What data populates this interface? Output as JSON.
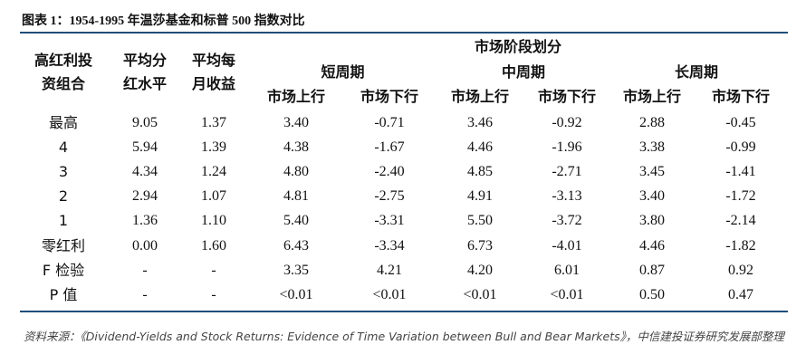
{
  "title": "图表 1：1954-1995 年温莎基金和标普 500 指数对比",
  "table": {
    "head": {
      "portfolio": [
        "高红利投",
        "资组合"
      ],
      "dividend": [
        "平均分",
        "红水平"
      ],
      "monthly": [
        "平均每",
        "月收益"
      ],
      "group": "市场阶段划分",
      "periods": [
        "短周期",
        "中周期",
        "长周期"
      ],
      "phases": [
        "市场上行",
        "市场下行",
        "市场上行",
        "市场下行",
        "市场上行",
        "市场下行"
      ]
    },
    "rows": [
      [
        "最高",
        "9.05",
        "1.37",
        "3.40",
        "-0.71",
        "3.46",
        "-0.92",
        "2.88",
        "-0.45"
      ],
      [
        "4",
        "5.94",
        "1.39",
        "4.38",
        "-1.67",
        "4.46",
        "-1.96",
        "3.38",
        "-0.99"
      ],
      [
        "3",
        "4.34",
        "1.24",
        "4.80",
        "-2.40",
        "4.85",
        "-2.71",
        "3.45",
        "-1.41"
      ],
      [
        "2",
        "2.94",
        "1.07",
        "4.81",
        "-2.75",
        "4.91",
        "-3.13",
        "3.40",
        "-1.72"
      ],
      [
        "1",
        "1.36",
        "1.10",
        "5.40",
        "-3.31",
        "5.50",
        "-3.72",
        "3.80",
        "-2.14"
      ],
      [
        "零红利",
        "0.00",
        "1.60",
        "6.43",
        "-3.34",
        "6.73",
        "-4.01",
        "4.46",
        "-1.82"
      ],
      [
        "F 检验",
        "-",
        "-",
        "3.35",
        "4.21",
        "4.20",
        "6.01",
        "0.87",
        "0.92"
      ],
      [
        "P 值",
        "-",
        "-",
        "<0.01",
        "<0.01",
        "<0.01",
        "<0.01",
        "0.50",
        "0.47"
      ]
    ]
  },
  "source": "资料来源：《Dividend-Yields and Stock Returns: Evidence of Time Variation between Bull and Bear Markets》，中信建投证券研究发展部整理"
}
